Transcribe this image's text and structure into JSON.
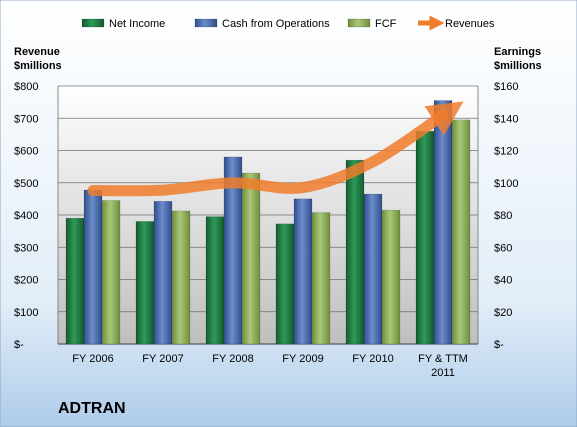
{
  "chart_data": {
    "type": "bar",
    "title": "ADTRAN",
    "categories": [
      [
        "FY 2006"
      ],
      [
        "FY 2007"
      ],
      [
        "FY 2008"
      ],
      [
        "FY 2009"
      ],
      [
        "FY 2010"
      ],
      [
        "FY & TTM",
        "2011"
      ]
    ],
    "series": [
      {
        "name": "Net Income",
        "axis": "right",
        "type": "bar",
        "color": "#217A43",
        "values": [
          78,
          76,
          79,
          74.5,
          114,
          132
        ]
      },
      {
        "name": "Cash from Operations",
        "axis": "right",
        "type": "bar",
        "color": "#4A6DB3",
        "values": [
          95.5,
          88.5,
          116,
          90,
          93,
          151
        ]
      },
      {
        "name": "FCF",
        "axis": "right",
        "type": "bar",
        "color": "#8FB35A",
        "values": [
          89,
          82.5,
          106,
          81.5,
          83,
          139
        ]
      },
      {
        "name": "Revenues",
        "axis": "left",
        "type": "line",
        "color": "#F07D2B",
        "values": [
          476,
          477,
          500,
          485,
          565,
          710
        ]
      }
    ],
    "ylabel_left": [
      "Revenue",
      "$millions"
    ],
    "ylabel_right": [
      "Earnings",
      "$millions"
    ],
    "ylim_left": [
      0,
      800
    ],
    "ylim_right": [
      0,
      160
    ],
    "yticks_left": [
      "$-",
      "$100",
      "$200",
      "$300",
      "$400",
      "$500",
      "$600",
      "$700",
      "$800"
    ],
    "yticks_right": [
      "$-",
      "$20",
      "$40",
      "$60",
      "$80",
      "$100",
      "$120",
      "$140",
      "$160"
    ],
    "grid": true,
    "legend_position": "top",
    "colors": {
      "background_top": "#FFFFFF",
      "background_bottom": "#AFCCEA",
      "plot_top": "#FFFFFF",
      "plot_bottom": "#BFBFBF"
    }
  }
}
